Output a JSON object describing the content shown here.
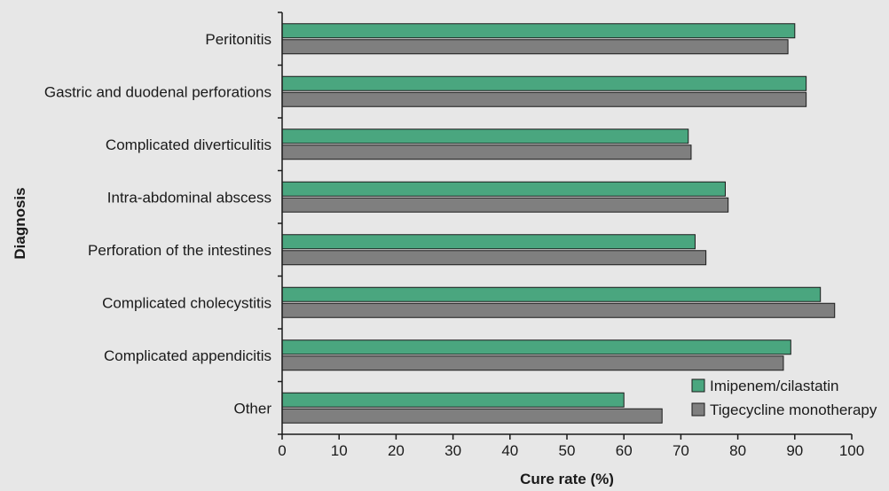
{
  "chart_data": {
    "type": "bar",
    "orientation": "horizontal",
    "categories": [
      "Peritonitis",
      "Gastric and duodenal perforations",
      "Complicated diverticulitis",
      "Intra-abdominal abscess",
      "Perforation of the intestines",
      "Complicated cholecystitis",
      "Complicated appendicitis",
      "Other"
    ],
    "series": [
      {
        "name": "Imipenem/cilastatin",
        "color": "#4aa67f",
        "values": [
          90,
          92,
          71.3,
          77.8,
          72.5,
          94.5,
          89.3,
          60
        ]
      },
      {
        "name": "Tigecycline monotherapy",
        "color": "#7f7f7f",
        "values": [
          88.8,
          92,
          71.8,
          78.3,
          74.4,
          97,
          88,
          66.7
        ]
      }
    ],
    "xlabel": "Cure rate (%)",
    "ylabel": "Diagnosis",
    "xlim": [
      0,
      100
    ],
    "xticks": [
      0,
      10,
      20,
      30,
      40,
      50,
      60,
      70,
      80,
      90,
      100
    ],
    "legend_position": "bottom-right",
    "grid": false
  }
}
